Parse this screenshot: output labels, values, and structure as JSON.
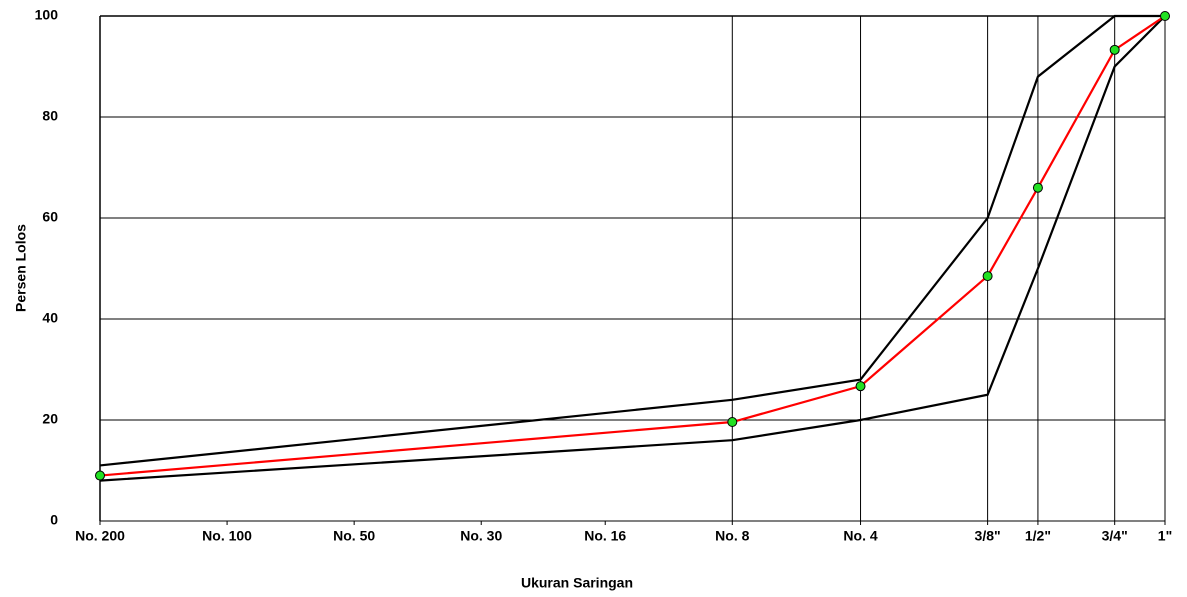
{
  "chart_data": {
    "type": "line",
    "xlabel": "Ukuran Saringan",
    "ylabel": "Persen Lolos",
    "xscale": "log",
    "x": [
      0.075,
      2.36,
      4.75,
      9.5,
      12.5,
      19,
      25
    ],
    "xlim": [
      0.075,
      25
    ],
    "xticks": [
      {
        "value": 0.075,
        "label": "No. 200"
      },
      {
        "value": 0.15,
        "label": "No. 100"
      },
      {
        "value": 0.3,
        "label": "No. 50"
      },
      {
        "value": 0.6,
        "label": "No. 30"
      },
      {
        "value": 1.18,
        "label": "No. 16"
      },
      {
        "value": 2.36,
        "label": "No. 8"
      },
      {
        "value": 4.75,
        "label": "No. 4"
      },
      {
        "value": 9.5,
        "label": "3/8\""
      },
      {
        "value": 12.5,
        "label": "1/2\""
      },
      {
        "value": 19,
        "label": "3/4\""
      },
      {
        "value": 25,
        "label": "1\""
      }
    ],
    "ylim": [
      0,
      100
    ],
    "yticks": [
      0,
      20,
      40,
      60,
      80,
      100
    ],
    "grid": true,
    "series": [
      {
        "color": "#000000",
        "values": [
          11,
          24,
          28,
          60,
          88,
          100,
          100
        ]
      },
      {
        "color": "#000000",
        "values": [
          8,
          16,
          20,
          25,
          50,
          90,
          100
        ]
      },
      {
        "color": "#ff0000",
        "marker_color": "#22e022",
        "values": [
          9,
          19.6,
          26.7,
          48.5,
          66,
          93.3,
          100
        ]
      }
    ]
  }
}
